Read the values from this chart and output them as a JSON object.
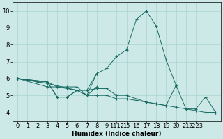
{
  "background_color": "#cce9e7",
  "grid_color": "#aad4d1",
  "line_color": "#1a6b63",
  "xlabel": "Humidex (Indice chaleur)",
  "xtick_labels": [
    "0",
    "1",
    "2",
    "3",
    "4",
    "5",
    "6",
    "7",
    "8",
    "9",
    "1112",
    "15",
    "16",
    "17",
    "18",
    "19",
    "20",
    "21",
    "2223"
  ],
  "ylim": [
    3.5,
    10.5
  ],
  "yticks": [
    4,
    5,
    6,
    7,
    8,
    9,
    10
  ],
  "line1": [
    [
      0,
      6.0
    ],
    [
      1,
      5.9
    ],
    [
      2,
      5.8
    ],
    [
      3,
      5.8
    ],
    [
      4,
      4.9
    ],
    [
      5,
      4.9
    ],
    [
      6,
      5.3
    ],
    [
      7,
      5.3
    ],
    [
      8,
      6.3
    ],
    [
      9,
      6.6
    ],
    [
      10,
      7.3
    ],
    [
      11,
      7.7
    ],
    [
      12,
      9.5
    ],
    [
      13,
      10.0
    ],
    [
      14,
      9.1
    ],
    [
      15,
      7.1
    ],
    [
      16,
      5.6
    ],
    [
      17,
      4.2
    ],
    [
      18,
      4.2
    ],
    [
      19,
      4.9
    ],
    [
      20,
      4.0
    ]
  ],
  "line2": [
    [
      0,
      6.0
    ],
    [
      3,
      5.8
    ],
    [
      4,
      5.5
    ],
    [
      5,
      5.4
    ],
    [
      6,
      5.3
    ],
    [
      7,
      5.3
    ],
    [
      8,
      5.4
    ],
    [
      9,
      5.4
    ],
    [
      10,
      5.0
    ],
    [
      11,
      5.0
    ],
    [
      12,
      4.8
    ],
    [
      13,
      4.6
    ],
    [
      14,
      4.5
    ],
    [
      15,
      4.4
    ],
    [
      16,
      5.6
    ]
  ],
  "line3": [
    [
      0,
      6.0
    ],
    [
      3,
      5.5
    ],
    [
      4,
      5.5
    ],
    [
      5,
      5.5
    ],
    [
      6,
      5.5
    ],
    [
      7,
      5.0
    ],
    [
      8,
      5.0
    ],
    [
      9,
      5.0
    ],
    [
      10,
      4.8
    ],
    [
      11,
      4.8
    ],
    [
      12,
      4.7
    ],
    [
      13,
      4.6
    ],
    [
      14,
      4.5
    ],
    [
      15,
      4.4
    ],
    [
      16,
      4.3
    ],
    [
      17,
      4.2
    ],
    [
      18,
      4.1
    ],
    [
      19,
      4.0
    ],
    [
      20,
      4.0
    ]
  ],
  "line4": [
    [
      0,
      6.0
    ],
    [
      3,
      5.8
    ],
    [
      4,
      4.9
    ],
    [
      5,
      4.9
    ],
    [
      6,
      5.3
    ],
    [
      7,
      5.0
    ],
    [
      8,
      6.3
    ]
  ],
  "line5": [
    [
      0,
      6.0
    ],
    [
      3,
      5.7
    ],
    [
      6,
      5.3
    ],
    [
      7,
      5.0
    ],
    [
      8,
      5.5
    ]
  ]
}
